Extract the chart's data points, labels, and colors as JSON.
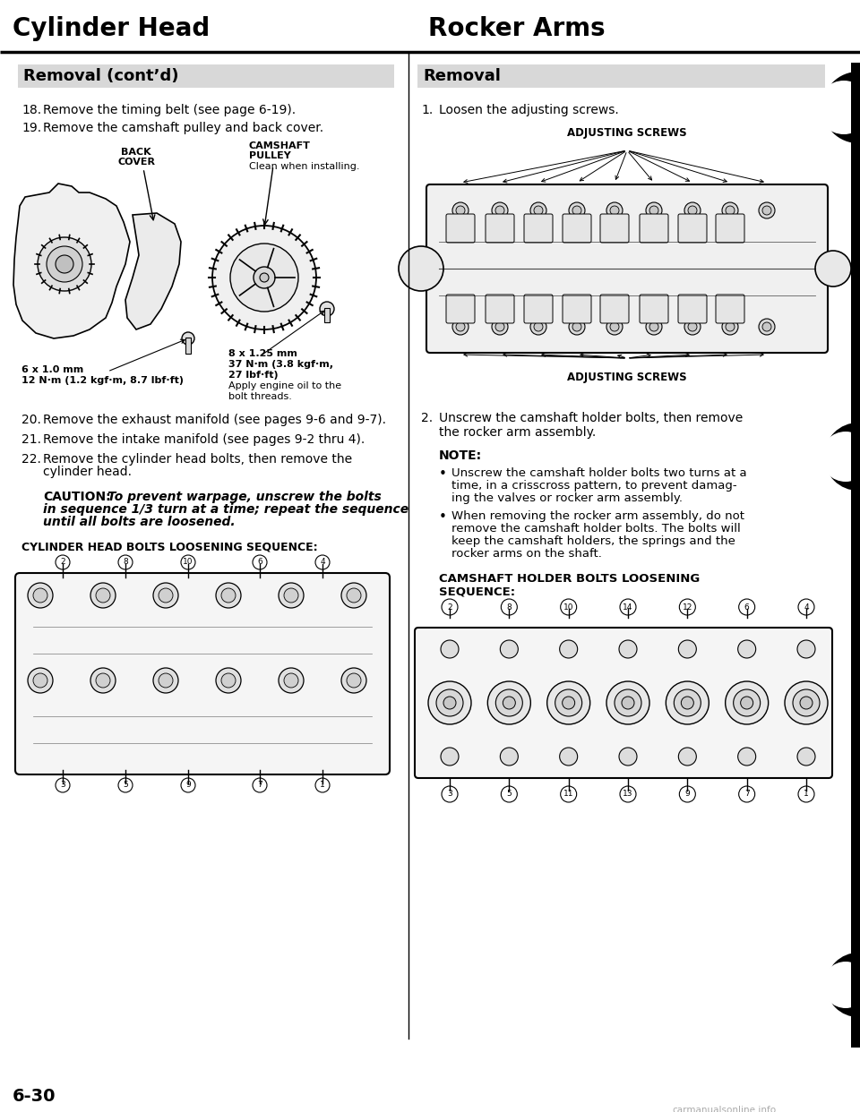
{
  "page_title_left": "Cylinder Head",
  "page_title_right": "Rocker Arms",
  "page_number": "6-30",
  "watermark": "carmanualsonline.info",
  "background_color": "#ffffff",
  "left_section": {
    "section_title": "Removal (cont’d)",
    "item18": "Remove the timing belt (see page 6-19).",
    "item19": "Remove the camshaft pulley and back cover.",
    "item20": "Remove the exhaust manifold (see pages 9-6 and 9-7).",
    "item21": "Remove the intake manifold (see pages 9-2 thru 4).",
    "item22_line1": "Remove the cylinder head bolts, then remove the",
    "item22_line2": "cylinder head.",
    "caution_label": "CAUTION:",
    "caution_body_line1": "To prevent warpage, unscrew the bolts",
    "caution_body_line2": "in sequence 1/3 turn at a time; repeat the sequence",
    "caution_body_line3": "until all bolts are loosened.",
    "seq_label": "CYLINDER HEAD BOLTS LOOSENING SEQUENCE:",
    "back_cover_label": "BACK\nCOVER",
    "camshaft_pulley_label": "CAMSHAFT\nPULLEY",
    "clean_note": "Clean when installing.",
    "bolt1_line1": "6 x 1.0 mm",
    "bolt1_line2": "12 N·m (1.2 kgf·m, 8.7 lbf·ft)",
    "bolt2_line1": "8 x 1.25 mm",
    "bolt2_line2": "37 N·m (3.8 kgf·m,",
    "bolt2_line3": "27 lbf·ft)",
    "bolt2_line4": "Apply engine oil to the",
    "bolt2_line5": "bolt threads.",
    "left_seq_top": [
      "2",
      "8",
      "10",
      "6",
      "4"
    ],
    "left_seq_bot": [
      "3",
      "5",
      "9",
      "7",
      "1"
    ]
  },
  "right_section": {
    "section_title": "Removal",
    "item1": "Loosen the adjusting screws.",
    "adjusting_screws_top": "ADJUSTING SCREWS",
    "adjusting_screws_bot": "ADJUSTING SCREWS",
    "item2_line1": "Unscrew the camshaft holder bolts, then remove",
    "item2_line2": "the rocker arm assembly.",
    "note_label": "NOTE:",
    "bullet1_line1": "Unscrew the camshaft holder bolts two turns at a",
    "bullet1_line2": "time, in a crisscross pattern, to prevent damag-",
    "bullet1_line3": "ing the valves or rocker arm assembly.",
    "bullet2_line1": "When removing the rocker arm assembly, do not",
    "bullet2_line2": "remove the camshaft holder bolts. The bolts will",
    "bullet2_line3": "keep the camshaft holders, the springs and the",
    "bullet2_line4": "rocker arms on the shaft.",
    "seq_label_line1": "CAMSHAFT HOLDER BOLTS LOOSENING",
    "seq_label_line2": "SEQUENCE:",
    "right_seq_top": [
      "2",
      "8",
      "10",
      "14",
      "12",
      "6",
      "4"
    ],
    "right_seq_bot": [
      "3",
      "5",
      "11",
      "13",
      "9",
      "7",
      "1"
    ]
  },
  "divider_color": "#000000"
}
